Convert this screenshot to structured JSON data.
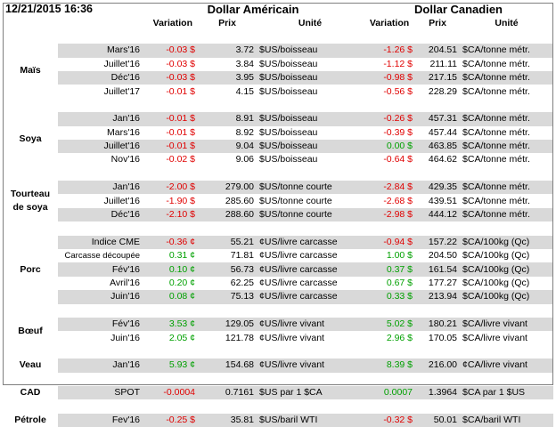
{
  "header": {
    "date": "12/21/2015 16:36",
    "us_title": "Dollar Américain",
    "ca_title": "Dollar Canadien",
    "col_variation": "Variation",
    "col_prix": "Prix",
    "col_unite": "Unité"
  },
  "groups": [
    {
      "category": [
        "Maïs"
      ],
      "rows": [
        {
          "period": "Mars'16",
          "us_var": "-0.03 $",
          "us_price": "3.72",
          "us_unit": "$US/boisseau",
          "ca_var": "-1.26 $",
          "ca_price": "204.51",
          "ca_unit": "$CA/tonne métr.",
          "us_sign": "neg",
          "ca_sign": "neg"
        },
        {
          "period": "Juillet'16",
          "us_var": "-0.03 $",
          "us_price": "3.84",
          "us_unit": "$US/boisseau",
          "ca_var": "-1.12 $",
          "ca_price": "211.11",
          "ca_unit": "$CA/tonne métr.",
          "us_sign": "neg",
          "ca_sign": "neg"
        },
        {
          "period": "Déc'16",
          "us_var": "-0.03 $",
          "us_price": "3.95",
          "us_unit": "$US/boisseau",
          "ca_var": "-0.98 $",
          "ca_price": "217.15",
          "ca_unit": "$CA/tonne métr.",
          "us_sign": "neg",
          "ca_sign": "neg"
        },
        {
          "period": "Juillet'17",
          "us_var": "-0.01 $",
          "us_price": "4.15",
          "us_unit": "$US/boisseau",
          "ca_var": "-0.56 $",
          "ca_price": "228.29",
          "ca_unit": "$CA/tonne métr.",
          "us_sign": "neg",
          "ca_sign": "neg"
        }
      ]
    },
    {
      "category": [
        "Soya"
      ],
      "rows": [
        {
          "period": "Jan'16",
          "us_var": "-0.01 $",
          "us_price": "8.91",
          "us_unit": "$US/boisseau",
          "ca_var": "-0.26 $",
          "ca_price": "457.31",
          "ca_unit": "$CA/tonne métr.",
          "us_sign": "neg",
          "ca_sign": "neg"
        },
        {
          "period": "Mars'16",
          "us_var": "-0.01 $",
          "us_price": "8.92",
          "us_unit": "$US/boisseau",
          "ca_var": "-0.39 $",
          "ca_price": "457.44",
          "ca_unit": "$CA/tonne métr.",
          "us_sign": "neg",
          "ca_sign": "neg"
        },
        {
          "period": "Juillet'16",
          "us_var": "-0.01 $",
          "us_price": "9.04",
          "us_unit": "$US/boisseau",
          "ca_var": "0.00 $",
          "ca_price": "463.85",
          "ca_unit": "$CA/tonne métr.",
          "us_sign": "neg",
          "ca_sign": "pos"
        },
        {
          "period": "Nov'16",
          "us_var": "-0.02 $",
          "us_price": "9.06",
          "us_unit": "$US/boisseau",
          "ca_var": "-0.64 $",
          "ca_price": "464.62",
          "ca_unit": "$CA/tonne métr.",
          "us_sign": "neg",
          "ca_sign": "neg"
        }
      ]
    },
    {
      "category": [
        "Tourteau",
        "de soya"
      ],
      "rows": [
        {
          "period": "Jan'16",
          "us_var": "-2.00 $",
          "us_price": "279.00",
          "us_unit": "$US/tonne courte",
          "ca_var": "-2.84 $",
          "ca_price": "429.35",
          "ca_unit": "$CA/tonne métr.",
          "us_sign": "neg",
          "ca_sign": "neg"
        },
        {
          "period": "Juillet'16",
          "us_var": "-1.90 $",
          "us_price": "285.60",
          "us_unit": "$US/tonne courte",
          "ca_var": "-2.68 $",
          "ca_price": "439.51",
          "ca_unit": "$CA/tonne métr.",
          "us_sign": "neg",
          "ca_sign": "neg"
        },
        {
          "period": "Déc'16",
          "us_var": "-2.10 $",
          "us_price": "288.60",
          "us_unit": "$US/tonne courte",
          "ca_var": "-2.98 $",
          "ca_price": "444.12",
          "ca_unit": "$CA/tonne métr.",
          "us_sign": "neg",
          "ca_sign": "neg"
        }
      ]
    },
    {
      "category": [
        "Porc"
      ],
      "rows": [
        {
          "period": "Indice CME",
          "us_var": "-0.36 ¢",
          "us_price": "55.21",
          "us_unit": "¢US/livre carcasse",
          "ca_var": "-0.94 $",
          "ca_price": "157.22",
          "ca_unit": "$CA/100kg (Qc)",
          "us_sign": "neg",
          "ca_sign": "neg"
        },
        {
          "period": "Carcasse découpée",
          "us_var": "0.31 ¢",
          "us_price": "71.81",
          "us_unit": "¢US/livre carcasse",
          "ca_var": "1.00 $",
          "ca_price": "204.50",
          "ca_unit": "$CA/100kg (Qc)",
          "us_sign": "pos",
          "ca_sign": "pos"
        },
        {
          "period": "Fév'16",
          "us_var": "0.10 ¢",
          "us_price": "56.73",
          "us_unit": "¢US/livre carcasse",
          "ca_var": "0.37 $",
          "ca_price": "161.54",
          "ca_unit": "$CA/100kg (Qc)",
          "us_sign": "pos",
          "ca_sign": "pos"
        },
        {
          "period": "Avril'16",
          "us_var": "0.20 ¢",
          "us_price": "62.25",
          "us_unit": "¢US/livre carcasse",
          "ca_var": "0.67 $",
          "ca_price": "177.27",
          "ca_unit": "$CA/100kg (Qc)",
          "us_sign": "pos",
          "ca_sign": "pos"
        },
        {
          "period": "Juin'16",
          "us_var": "0.08 ¢",
          "us_price": "75.13",
          "us_unit": "¢US/livre carcasse",
          "ca_var": "0.33 $",
          "ca_price": "213.94",
          "ca_unit": "$CA/100kg (Qc)",
          "us_sign": "pos",
          "ca_sign": "pos"
        }
      ]
    },
    {
      "category": [
        "Bœuf"
      ],
      "rows": [
        {
          "period": "Fév'16",
          "us_var": "3.53 ¢",
          "us_price": "129.05",
          "us_unit": "¢US/livre vivant",
          "ca_var": "5.02 $",
          "ca_price": "180.21",
          "ca_unit": "$CA/livre vivant",
          "us_sign": "pos",
          "ca_sign": "pos"
        },
        {
          "period": "Juin'16",
          "us_var": "2.05 ¢",
          "us_price": "121.78",
          "us_unit": "¢US/livre vivant",
          "ca_var": "2.96 $",
          "ca_price": "170.05",
          "ca_unit": "$CA/livre vivant",
          "us_sign": "pos",
          "ca_sign": "pos"
        }
      ]
    },
    {
      "category": [
        "Veau"
      ],
      "rows": [
        {
          "period": "Jan'16",
          "us_var": "5.93 ¢",
          "us_price": "154.68",
          "us_unit": "¢US/livre vivant",
          "ca_var": "8.39 $",
          "ca_price": "216.00",
          "ca_unit": "¢CA/livre vivant",
          "us_sign": "pos",
          "ca_sign": "pos"
        }
      ]
    },
    {
      "category": [
        "CAD"
      ],
      "rows": [
        {
          "period": "SPOT",
          "us_var": "-0.0004",
          "us_price": "0.7161",
          "us_unit": "$US par 1 $CA",
          "ca_var": "0.0007",
          "ca_price": "1.3964",
          "ca_unit": "$CA par 1 $US",
          "us_sign": "neg",
          "ca_sign": "pos"
        }
      ]
    },
    {
      "category": [
        "Pétrole"
      ],
      "rows": [
        {
          "period": "Fev'16",
          "us_var": "-0.25 $",
          "us_price": "35.81",
          "us_unit": "$US/baril WTI",
          "ca_var": "-0.32 $",
          "ca_price": "50.01",
          "ca_unit": "$CA/baril WTI",
          "us_sign": "neg",
          "ca_sign": "neg"
        }
      ]
    }
  ],
  "colors": {
    "negative": "#e00000",
    "positive": "#00a000",
    "row_shade": "#d9d9d9",
    "border": "#7f7f7f"
  }
}
